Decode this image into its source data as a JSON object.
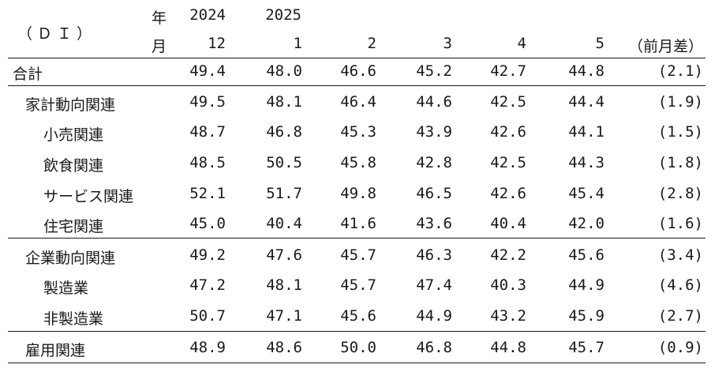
{
  "header": {
    "unit_label": "（ＤＩ）",
    "year_label": "年",
    "month_label": "月",
    "year_2024": "2024",
    "year_2025": "2025",
    "months": [
      "12",
      "1",
      "2",
      "3",
      "4",
      "5"
    ],
    "diff_label": "（前月差）"
  },
  "rows": [
    {
      "label": "合計",
      "values": [
        "49.4",
        "48.0",
        "46.6",
        "45.2",
        "42.7",
        "44.8"
      ],
      "diff": "(2.1)"
    },
    {
      "label": "家計動向関連",
      "values": [
        "49.5",
        "48.1",
        "46.4",
        "44.6",
        "42.5",
        "44.4"
      ],
      "diff": "(1.9)"
    },
    {
      "label": "小売関連",
      "values": [
        "48.7",
        "46.8",
        "45.3",
        "43.9",
        "42.6",
        "44.1"
      ],
      "diff": "(1.5)"
    },
    {
      "label": "飲食関連",
      "values": [
        "48.5",
        "50.5",
        "45.8",
        "42.8",
        "42.5",
        "44.3"
      ],
      "diff": "(1.8)"
    },
    {
      "label": "サービス関連",
      "values": [
        "52.1",
        "51.7",
        "49.8",
        "46.5",
        "42.6",
        "45.4"
      ],
      "diff": "(2.8)"
    },
    {
      "label": "住宅関連",
      "values": [
        "45.0",
        "40.4",
        "41.6",
        "43.6",
        "40.4",
        "42.0"
      ],
      "diff": "(1.6)"
    },
    {
      "label": "企業動向関連",
      "values": [
        "49.2",
        "47.6",
        "45.7",
        "46.3",
        "42.2",
        "45.6"
      ],
      "diff": "(3.4)"
    },
    {
      "label": "製造業",
      "values": [
        "47.2",
        "48.1",
        "45.7",
        "47.4",
        "40.3",
        "44.9"
      ],
      "diff": "(4.6)"
    },
    {
      "label": "非製造業",
      "values": [
        "50.7",
        "47.1",
        "45.6",
        "44.9",
        "43.2",
        "45.9"
      ],
      "diff": "(2.7)"
    },
    {
      "label": "雇用関連",
      "values": [
        "48.9",
        "48.6",
        "50.0",
        "46.8",
        "44.8",
        "45.7"
      ],
      "diff": "(0.9)"
    }
  ]
}
